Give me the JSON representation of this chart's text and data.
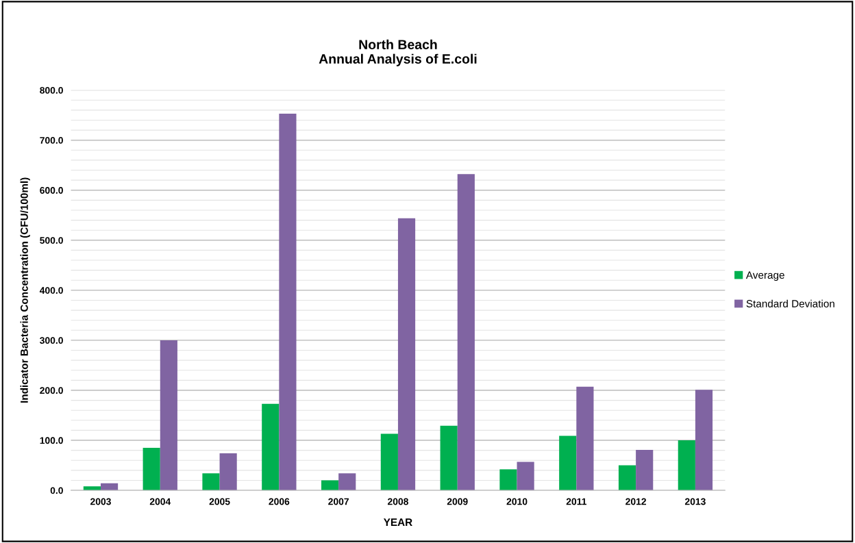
{
  "chart_data": {
    "type": "bar",
    "title": "North Beach\nAnnual Analysis of E.coli",
    "xlabel": "YEAR",
    "ylabel": "Indicator Bacteria Concentration (CFU/100ml)",
    "categories": [
      "2003",
      "2004",
      "2005",
      "2006",
      "2007",
      "2008",
      "2009",
      "2010",
      "2011",
      "2012",
      "2013"
    ],
    "series": [
      {
        "name": "Average",
        "color": "#00b050",
        "values": [
          8,
          85,
          34,
          173,
          20,
          113,
          129,
          42,
          109,
          50,
          100
        ]
      },
      {
        "name": "Standard Deviation",
        "color": "#8064a2",
        "values": [
          14,
          300,
          74,
          753,
          34,
          544,
          632,
          57,
          207,
          81,
          201
        ]
      }
    ],
    "ylim": [
      0,
      800
    ],
    "yticks": [
      {
        "value": 0,
        "label": "0.0"
      },
      {
        "value": 100,
        "label": "100.0"
      },
      {
        "value": 200,
        "label": "200.0"
      },
      {
        "value": 300,
        "label": "300.0"
      },
      {
        "value": 400,
        "label": "400.0"
      },
      {
        "value": 500,
        "label": "500.0"
      },
      {
        "value": 600,
        "label": "600.0"
      },
      {
        "value": 700,
        "label": "700.0"
      },
      {
        "value": 800,
        "label": "800.0"
      }
    ],
    "grid": "y",
    "legend": "right"
  }
}
